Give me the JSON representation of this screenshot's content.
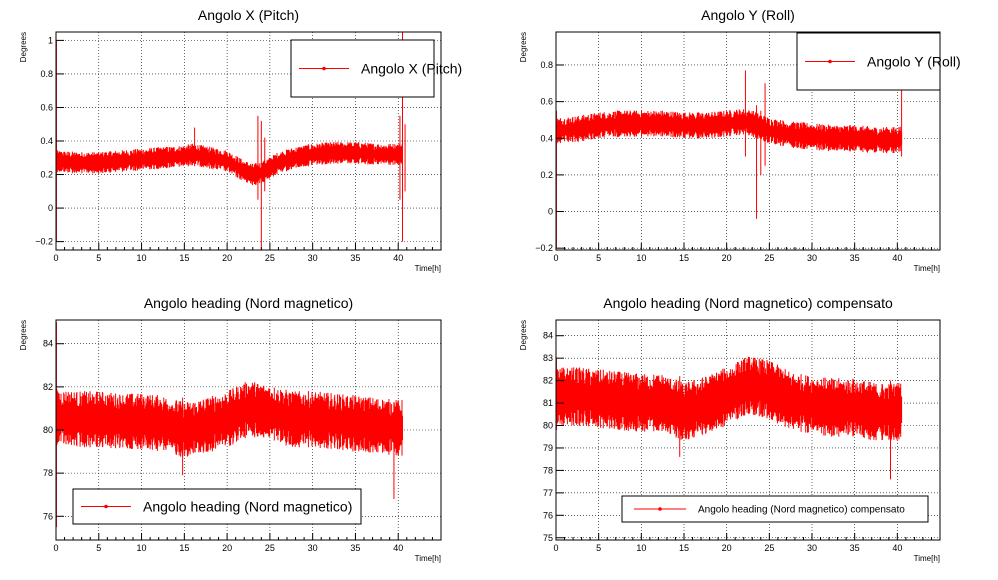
{
  "chart_data": [
    {
      "type": "line",
      "title": "Angolo X (Pitch)",
      "xlabel": "Time[h]",
      "ylabel": "Degrees",
      "xlim": [
        0,
        45
      ],
      "ylim": [
        -0.25,
        1.05
      ],
      "xticks": [
        "0",
        "5",
        "10",
        "15",
        "20",
        "25",
        "30",
        "35",
        "40"
      ],
      "yticks": [
        "−0.2",
        "0",
        "0.2",
        "0.4",
        "0.6",
        "0.8",
        "1"
      ],
      "grid": true,
      "legend_position": "top-right",
      "series": [
        {
          "name": "Angolo X (Pitch)",
          "color": "#ff0000",
          "x": [
            0,
            2.5,
            5,
            7.5,
            10,
            12.5,
            15,
            16,
            18,
            20,
            21,
            22,
            23,
            24,
            25,
            26,
            28,
            30,
            32.5,
            35,
            37.5,
            40,
            40.5
          ],
          "y": [
            0.28,
            0.27,
            0.27,
            0.28,
            0.29,
            0.3,
            0.31,
            0.32,
            0.3,
            0.28,
            0.25,
            0.22,
            0.2,
            0.21,
            0.24,
            0.27,
            0.3,
            0.32,
            0.33,
            0.33,
            0.32,
            0.32,
            0.32
          ],
          "band": 0.045,
          "spikes": [
            {
              "x": 0.05,
              "y0": -0.2,
              "y1": 1.0
            },
            {
              "x": 16.2,
              "y0": 0.25,
              "y1": 0.48
            },
            {
              "x": 23.6,
              "y0": 0.05,
              "y1": 0.55
            },
            {
              "x": 24.0,
              "y0": -0.25,
              "y1": 0.52
            },
            {
              "x": 24.4,
              "y0": 0.1,
              "y1": 0.42
            },
            {
              "x": 40.2,
              "y0": 0.05,
              "y1": 0.55
            },
            {
              "x": 40.5,
              "y0": -0.2,
              "y1": 1.05
            },
            {
              "x": 40.8,
              "y0": 0.1,
              "y1": 0.5
            }
          ]
        }
      ]
    },
    {
      "type": "line",
      "title": "Angolo Y (Roll)",
      "xlabel": "Time[h]",
      "ylabel": "Degrees",
      "xlim": [
        0,
        45
      ],
      "ylim": [
        -0.21,
        0.98
      ],
      "xticks": [
        "0",
        "5",
        "10",
        "15",
        "20",
        "25",
        "30",
        "35",
        "40"
      ],
      "yticks": [
        "−0.2",
        "0",
        "0.2",
        "0.4",
        "0.6",
        "0.8"
      ],
      "grid": true,
      "legend_position": "top-right",
      "series": [
        {
          "name": "Angolo Y (Roll)",
          "color": "#ff0000",
          "x": [
            0,
            2.5,
            5,
            7.5,
            10,
            12.5,
            15,
            17.5,
            20,
            22,
            23,
            24,
            25,
            27.5,
            30,
            32.5,
            35,
            37.5,
            40,
            40.5
          ],
          "y": [
            0.44,
            0.45,
            0.47,
            0.48,
            0.48,
            0.48,
            0.47,
            0.47,
            0.48,
            0.49,
            0.48,
            0.46,
            0.44,
            0.42,
            0.41,
            0.4,
            0.4,
            0.39,
            0.39,
            0.4
          ],
          "band": 0.05,
          "spikes": [
            {
              "x": 0.05,
              "y0": -0.2,
              "y1": 0.55
            },
            {
              "x": 22.2,
              "y0": 0.3,
              "y1": 0.77
            },
            {
              "x": 23.5,
              "y0": -0.04,
              "y1": 0.58
            },
            {
              "x": 24.0,
              "y0": 0.2,
              "y1": 0.55
            },
            {
              "x": 24.5,
              "y0": 0.25,
              "y1": 0.7
            },
            {
              "x": 40.5,
              "y0": 0.3,
              "y1": 0.7
            }
          ]
        }
      ]
    },
    {
      "type": "line",
      "title": "Angolo heading (Nord magnetico)",
      "xlabel": "Time[h]",
      "ylabel": "Degrees",
      "xlim": [
        0,
        45
      ],
      "ylim": [
        74.9,
        85.1
      ],
      "xticks": [
        "0",
        "5",
        "10",
        "15",
        "20",
        "25",
        "30",
        "35",
        "40"
      ],
      "yticks": [
        "76",
        "78",
        "80",
        "82",
        "84"
      ],
      "grid": true,
      "legend_position": "bottom-left",
      "series": [
        {
          "name": "Angolo heading (Nord magnetico)",
          "color": "#ff0000",
          "x": [
            0,
            2.5,
            5,
            7.5,
            10,
            12.5,
            15,
            17.5,
            20,
            22.5,
            25,
            27.5,
            30,
            32.5,
            35,
            37.5,
            40,
            40.5
          ],
          "y": [
            80.6,
            80.5,
            80.5,
            80.4,
            80.4,
            80.3,
            80.0,
            80.2,
            80.5,
            81.0,
            80.8,
            80.5,
            80.5,
            80.4,
            80.3,
            80.2,
            80.1,
            80.1
          ],
          "band": 0.9,
          "spikes": [
            {
              "x": 14.8,
              "y0": 77.9,
              "y1": 81.5
            },
            {
              "x": 39.5,
              "y0": 76.8,
              "y1": 81.3
            },
            {
              "x": 0.05,
              "y0": 75.5,
              "y1": 85.0
            }
          ]
        }
      ]
    },
    {
      "type": "line",
      "title": "Angolo heading (Nord magnetico) compensato",
      "xlabel": "Time[h]",
      "ylabel": "Degrees",
      "xlim": [
        0,
        45
      ],
      "ylim": [
        74.9,
        84.7
      ],
      "xticks": [
        "0",
        "5",
        "10",
        "15",
        "20",
        "25",
        "30",
        "35",
        "40"
      ],
      "yticks": [
        "75",
        "76",
        "77",
        "78",
        "79",
        "80",
        "81",
        "82",
        "83",
        "84"
      ],
      "grid": true,
      "legend_position": "bottom-right",
      "series": [
        {
          "name": "Angolo heading (Nord magnetico) compensato",
          "color": "#ff0000",
          "x": [
            0,
            2.5,
            5,
            7.5,
            10,
            12.5,
            15,
            17.5,
            20,
            22.5,
            25,
            27.5,
            30,
            32.5,
            35,
            37.5,
            40,
            40.5
          ],
          "y": [
            81.3,
            81.3,
            81.2,
            81.1,
            81.0,
            81.0,
            80.6,
            80.9,
            81.3,
            81.8,
            81.6,
            81.1,
            80.9,
            80.8,
            80.8,
            80.6,
            80.6,
            80.7
          ],
          "band": 0.9,
          "spikes": [
            {
              "x": 14.5,
              "y0": 78.6,
              "y1": 82.2
            },
            {
              "x": 39.2,
              "y0": 77.6,
              "y1": 82.0
            },
            {
              "x": 0.05,
              "y0": 79.8,
              "y1": 83.0
            }
          ]
        }
      ]
    }
  ]
}
